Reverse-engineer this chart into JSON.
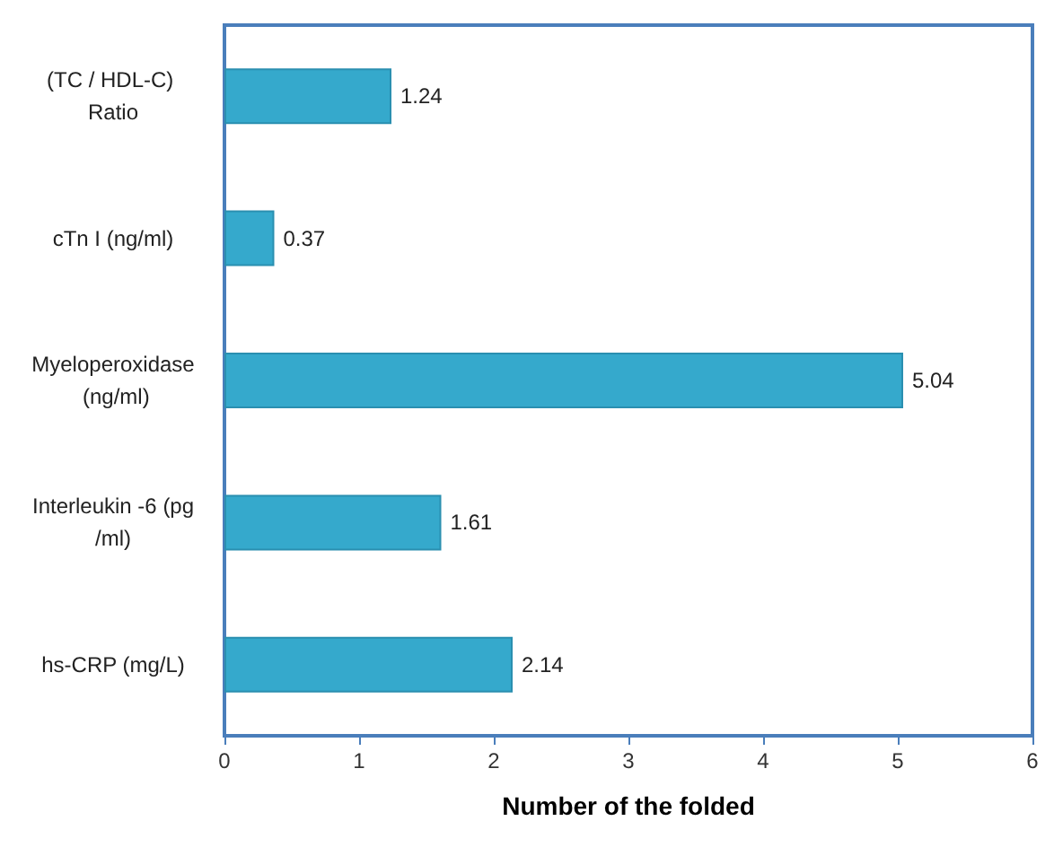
{
  "chart_data": {
    "type": "bar",
    "orientation": "horizontal",
    "xlabel": "Number of the folded",
    "categories": [
      "(TC / HDL-C) Ratio",
      "cTn I (ng/ml)",
      "Myeloperoxidase (ng/ml)",
      "Interleukin -6 (pg/ml)",
      "hs-CRP (mg/L)"
    ],
    "values": [
      1.24,
      0.37,
      5.04,
      1.61,
      2.14
    ],
    "color": "#35a9cc",
    "xlim": [
      0,
      6
    ],
    "xticks": [
      0,
      1,
      2,
      3,
      4,
      5,
      6
    ],
    "data_labels": true,
    "grid": false
  }
}
